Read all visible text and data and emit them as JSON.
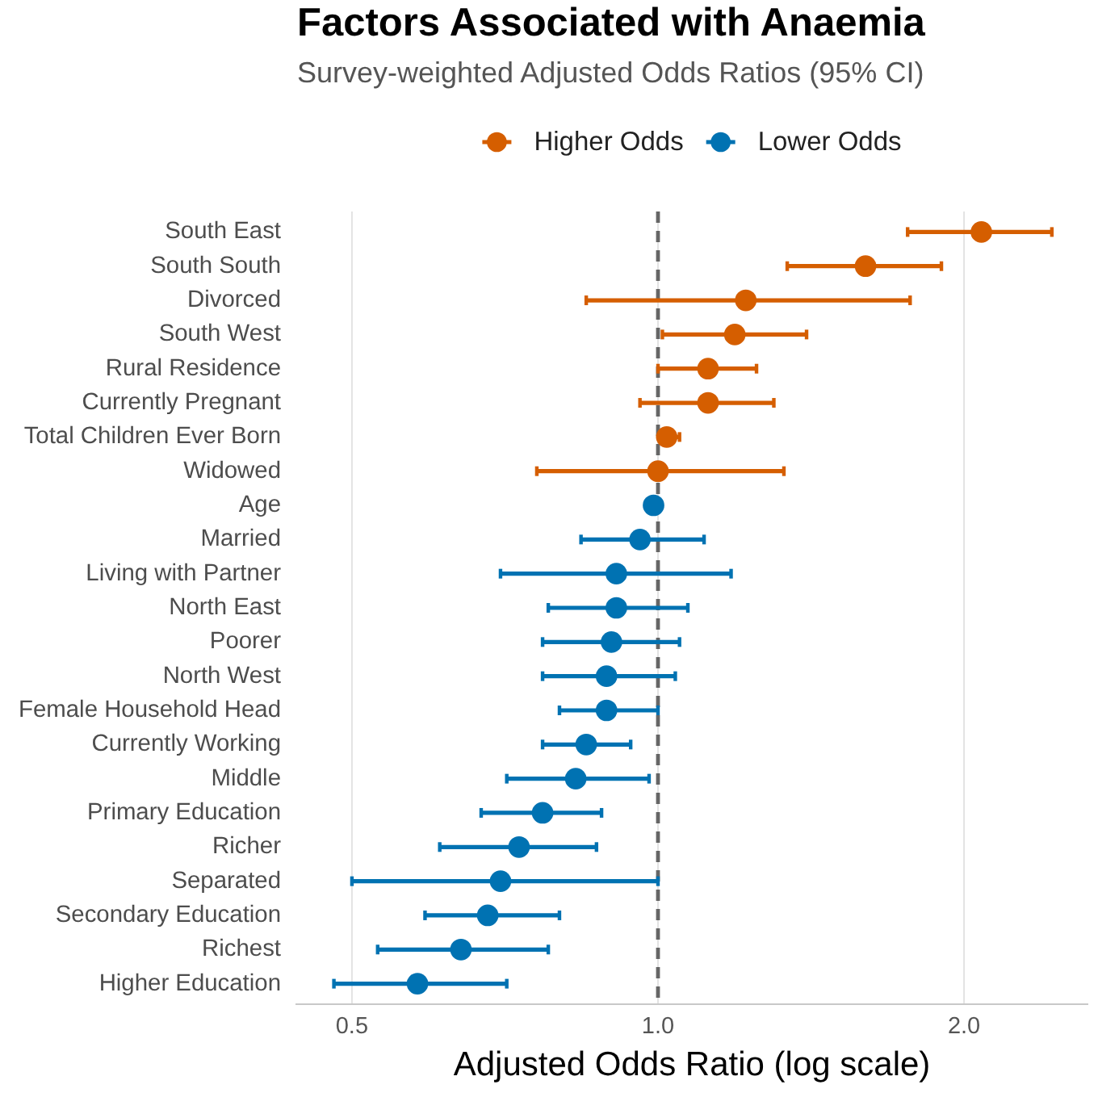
{
  "chart_data": {
    "type": "scatter",
    "orientation": "horizontal",
    "title": "Factors Associated with Anaemia",
    "subtitle": "Survey-weighted Adjusted Odds Ratios (95% CI)",
    "xlabel": "Adjusted Odds Ratio (log scale)",
    "categories": [
      "South East",
      "South South",
      "Divorced",
      "South West",
      "Rural Residence",
      "Currently Pregnant",
      "Total Children Ever Born",
      "Widowed",
      "Age",
      "Married",
      "Living with Partner",
      "North East",
      "Poorer",
      "North West",
      "Female Household Head",
      "Currently Working",
      "Middle",
      "Primary Education",
      "Richer",
      "Separated",
      "Secondary Education",
      "Richest",
      "Higher Education"
    ],
    "series": [
      {
        "name": "Higher Odds",
        "color": "#d55e00",
        "values": [
          2.08,
          1.6,
          1.22,
          1.19,
          1.12,
          1.12,
          1.02,
          1.0,
          null,
          null,
          null,
          null,
          null,
          null,
          null,
          null,
          null,
          null,
          null,
          null,
          null,
          null,
          null
        ],
        "errors": [
          [
            1.76,
            2.44
          ],
          [
            1.34,
            1.9
          ],
          [
            0.85,
            1.77
          ],
          [
            1.01,
            1.4
          ],
          [
            1.0,
            1.25
          ],
          [
            0.96,
            1.3
          ],
          [
            1.02,
            1.05
          ],
          [
            0.76,
            1.33
          ],
          null,
          null,
          null,
          null,
          null,
          null,
          null,
          null,
          null,
          null,
          null,
          null,
          null,
          null,
          null
        ]
      },
      {
        "name": "Lower Odds",
        "color": "#0072b2",
        "values": [
          null,
          null,
          null,
          null,
          null,
          null,
          null,
          null,
          0.99,
          0.96,
          0.91,
          0.91,
          0.9,
          0.89,
          0.89,
          0.85,
          0.83,
          0.77,
          0.73,
          0.7,
          0.68,
          0.64,
          0.58
        ],
        "errors": [
          null,
          null,
          null,
          null,
          null,
          null,
          null,
          null,
          null,
          [
            0.84,
            1.11
          ],
          [
            0.7,
            1.18
          ],
          [
            0.78,
            1.07
          ],
          [
            0.77,
            1.05
          ],
          [
            0.77,
            1.04
          ],
          [
            0.8,
            1.0
          ],
          [
            0.77,
            0.94
          ],
          [
            0.71,
            0.98
          ],
          [
            0.67,
            0.88
          ],
          [
            0.61,
            0.87
          ],
          [
            0.5,
            1.0
          ],
          [
            0.59,
            0.8
          ],
          [
            0.53,
            0.78
          ],
          [
            0.48,
            0.71
          ]
        ]
      }
    ],
    "xlim": [
      0.44,
      2.65
    ],
    "xticks": [
      0.5,
      {
        "value": 1,
        "label": "1.0"
      },
      {
        "value": 2,
        "label": "2.0"
      }
    ],
    "log": "x",
    "grid": "x",
    "legend": "top",
    "marker": "circle",
    "ref_lines": [
      {
        "axis": "x",
        "value": 1,
        "color": "#666666",
        "line_style": "dashed"
      }
    ]
  }
}
